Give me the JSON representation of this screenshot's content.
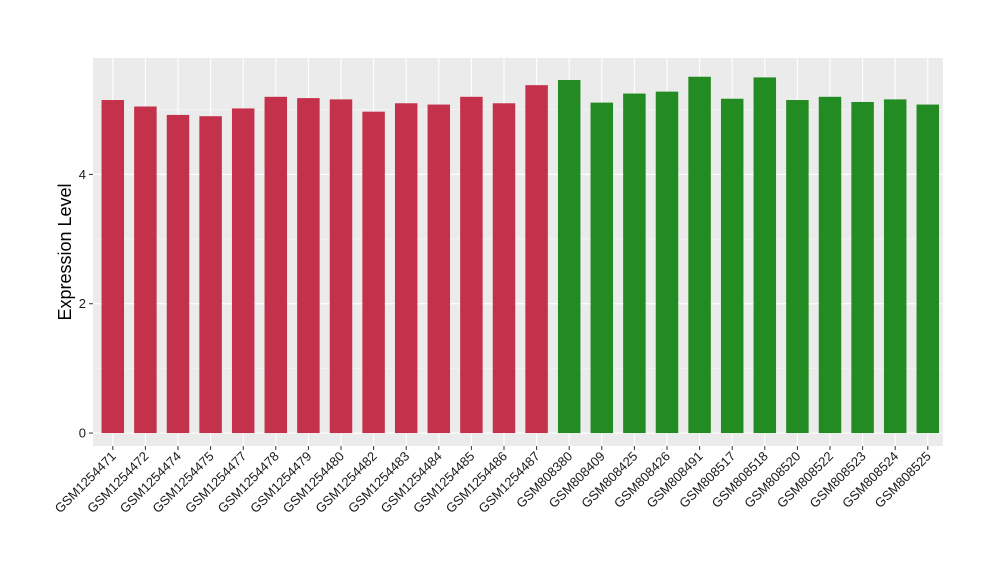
{
  "chart_data": {
    "type": "bar",
    "title": "",
    "xlabel": "",
    "ylabel": "Expression Level",
    "ylim": [
      -0.2,
      5.8
    ],
    "yticks": [
      0,
      2,
      4
    ],
    "grid": true,
    "legend": "none",
    "colors": {
      "group_a": "#c4314b",
      "group_b": "#228b22",
      "panel": "#ebebeb",
      "gridline": "#ffffff"
    },
    "categories": [
      "GSM1254471",
      "GSM1254472",
      "GSM1254474",
      "GSM1254475",
      "GSM1254477",
      "GSM1254478",
      "GSM1254479",
      "GSM1254480",
      "GSM1254482",
      "GSM1254483",
      "GSM1254484",
      "GSM1254485",
      "GSM1254486",
      "GSM1254487",
      "GSM808380",
      "GSM808409",
      "GSM808425",
      "GSM808426",
      "GSM808491",
      "GSM808517",
      "GSM808518",
      "GSM808520",
      "GSM808522",
      "GSM808523",
      "GSM808524",
      "GSM808525"
    ],
    "values": [
      5.15,
      5.05,
      4.92,
      4.9,
      5.02,
      5.2,
      5.18,
      5.16,
      4.97,
      5.1,
      5.08,
      5.2,
      5.1,
      5.38,
      5.46,
      5.11,
      5.25,
      5.28,
      5.51,
      5.17,
      5.5,
      5.15,
      5.2,
      5.12,
      5.16,
      5.08
    ],
    "groups": [
      "a",
      "a",
      "a",
      "a",
      "a",
      "a",
      "a",
      "a",
      "a",
      "a",
      "a",
      "a",
      "a",
      "a",
      "b",
      "b",
      "b",
      "b",
      "b",
      "b",
      "b",
      "b",
      "b",
      "b",
      "b",
      "b"
    ]
  }
}
